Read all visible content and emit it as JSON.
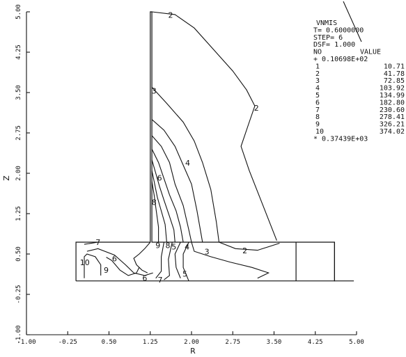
{
  "chart_data": {
    "type": "line",
    "title": "",
    "xlabel": "R",
    "ylabel": "Z",
    "xlim": [
      -1.0,
      5.0
    ],
    "ylim": [
      -1.0,
      5.0
    ],
    "x_ticks": [
      "-1.00",
      "-0.25",
      "0.50",
      "1.25",
      "2.00",
      "2.75",
      "3.50",
      "4.25",
      "5.00"
    ],
    "y_ticks": [
      "-1.00",
      "-0.25",
      "0.50",
      "1.25",
      "2.00",
      "2.75",
      "3.50",
      "4.25",
      "5.00"
    ],
    "legend": {
      "header": "VNMIS",
      "time": "T=  0.6000000",
      "step": "STEP=   6",
      "dsf": "DSF=   1.000",
      "col_no": "NO",
      "col_value": "VALUE",
      "min_label": "+ 0.10698E+02",
      "max_label": "* 0.37439E+03",
      "levels": [
        {
          "no": "1",
          "value": "10.71"
        },
        {
          "no": "2",
          "value": "41.78"
        },
        {
          "no": "3",
          "value": "72.85"
        },
        {
          "no": "4",
          "value": "103.92"
        },
        {
          "no": "5",
          "value": "134.99"
        },
        {
          "no": "6",
          "value": "182.80"
        },
        {
          "no": "7",
          "value": "230.60"
        },
        {
          "no": "8",
          "value": "278.41"
        },
        {
          "no": "9",
          "value": "326.21"
        },
        {
          "no": "10",
          "value": "374.02"
        }
      ]
    },
    "geometry": {
      "outline": [
        [
          -0.1,
          0.0
        ],
        [
          -0.1,
          0.72
        ],
        [
          1.25,
          0.72
        ],
        [
          1.25,
          5.0
        ],
        [
          1.28,
          5.0
        ],
        [
          1.28,
          0.72
        ],
        [
          4.6,
          0.72
        ],
        [
          4.6,
          0.0
        ],
        [
          -0.1,
          0.0
        ]
      ],
      "inner_line": [
        [
          3.9,
          0.0
        ],
        [
          3.9,
          0.72
        ]
      ],
      "step": [
        [
          4.6,
          0.72
        ],
        [
          4.6,
          0.0
        ],
        [
          4.95,
          0.0
        ]
      ]
    },
    "contours": [
      {
        "level": "2",
        "points": [
          [
            1.28,
            5.0
          ],
          [
            1.7,
            4.95
          ],
          [
            2.05,
            4.7
          ],
          [
            2.4,
            4.3
          ],
          [
            2.75,
            3.9
          ],
          [
            3.0,
            3.55
          ],
          [
            3.15,
            3.25
          ],
          [
            3.05,
            2.95
          ],
          [
            2.9,
            2.5
          ],
          [
            3.05,
            2.05
          ],
          [
            3.3,
            1.4
          ],
          [
            3.55,
            0.75
          ]
        ]
      },
      {
        "level": "2",
        "points": [
          [
            2.5,
            0.72
          ],
          [
            2.8,
            0.6
          ],
          [
            3.2,
            0.57
          ],
          [
            3.6,
            0.7
          ]
        ]
      },
      {
        "level": "3",
        "points": [
          [
            1.28,
            3.6
          ],
          [
            1.55,
            3.3
          ],
          [
            1.85,
            2.95
          ],
          [
            2.05,
            2.6
          ],
          [
            2.2,
            2.2
          ],
          [
            2.35,
            1.7
          ],
          [
            2.45,
            1.1
          ],
          [
            2.5,
            0.72
          ]
        ]
      },
      {
        "level": "3",
        "points": [
          [
            2.0,
            0.72
          ],
          [
            2.05,
            0.55
          ],
          [
            2.35,
            0.45
          ],
          [
            2.7,
            0.35
          ],
          [
            3.1,
            0.25
          ],
          [
            3.4,
            0.15
          ],
          [
            3.2,
            0.05
          ]
        ]
      },
      {
        "level": "4",
        "points": [
          [
            1.28,
            3.0
          ],
          [
            1.5,
            2.8
          ],
          [
            1.7,
            2.5
          ],
          [
            1.85,
            2.15
          ],
          [
            2.0,
            1.8
          ],
          [
            2.1,
            1.3
          ],
          [
            2.2,
            0.72
          ]
        ]
      },
      {
        "level": "5",
        "points": [
          [
            1.28,
            2.7
          ],
          [
            1.45,
            2.5
          ],
          [
            1.6,
            2.2
          ],
          [
            1.7,
            1.8
          ],
          [
            1.85,
            1.4
          ],
          [
            1.95,
            0.95
          ],
          [
            2.0,
            0.72
          ]
        ]
      },
      {
        "level": "5",
        "points": [
          [
            1.95,
            0.72
          ],
          [
            1.85,
            0.5
          ],
          [
            1.85,
            0.25
          ],
          [
            1.95,
            0.0
          ]
        ]
      },
      {
        "level": "6",
        "points": [
          [
            1.28,
            2.45
          ],
          [
            1.4,
            2.2
          ],
          [
            1.5,
            1.9
          ],
          [
            1.6,
            1.6
          ],
          [
            1.72,
            1.3
          ],
          [
            1.8,
            1.0
          ],
          [
            1.85,
            0.72
          ]
        ]
      },
      {
        "level": "6",
        "points": [
          [
            1.8,
            0.72
          ],
          [
            1.7,
            0.5
          ],
          [
            1.72,
            0.25
          ],
          [
            1.8,
            0.05
          ]
        ]
      },
      {
        "level": "6",
        "points": [
          [
            0.1,
            0.55
          ],
          [
            0.3,
            0.6
          ],
          [
            0.6,
            0.48
          ],
          [
            0.8,
            0.3
          ],
          [
            0.95,
            0.15
          ],
          [
            1.15,
            0.1
          ],
          [
            1.3,
            0.15
          ]
        ]
      },
      {
        "level": "7",
        "points": [
          [
            1.28,
            2.25
          ],
          [
            1.35,
            2.0
          ],
          [
            1.42,
            1.75
          ],
          [
            1.5,
            1.5
          ],
          [
            1.6,
            1.2
          ],
          [
            1.68,
            0.95
          ],
          [
            1.7,
            0.72
          ]
        ]
      },
      {
        "level": "7",
        "points": [
          [
            1.65,
            0.72
          ],
          [
            1.58,
            0.4
          ],
          [
            1.6,
            0.1
          ],
          [
            1.5,
            0.02
          ]
        ]
      },
      {
        "level": "7",
        "points": [
          [
            0.05,
            0.68
          ],
          [
            0.3,
            0.72
          ],
          [
            0.6,
            0.72
          ]
        ]
      },
      {
        "level": "8",
        "points": [
          [
            1.28,
            2.05
          ],
          [
            1.33,
            1.8
          ],
          [
            1.38,
            1.55
          ],
          [
            1.45,
            1.3
          ],
          [
            1.52,
            1.05
          ],
          [
            1.55,
            0.72
          ]
        ]
      },
      {
        "level": "8",
        "points": [
          [
            1.5,
            0.72
          ],
          [
            1.45,
            0.45
          ],
          [
            1.45,
            0.18
          ],
          [
            1.35,
            0.05
          ]
        ]
      },
      {
        "level": "8",
        "points": [
          [
            0.45,
            0.44
          ],
          [
            0.55,
            0.38
          ],
          [
            0.7,
            0.2
          ],
          [
            0.85,
            0.1
          ],
          [
            1.0,
            0.15
          ],
          [
            1.05,
            0.25
          ]
        ]
      },
      {
        "level": "9",
        "points": [
          [
            1.28,
            1.85
          ],
          [
            1.32,
            1.6
          ],
          [
            1.36,
            1.3
          ],
          [
            1.4,
            1.0
          ],
          [
            1.4,
            0.72
          ]
        ]
      },
      {
        "level": "9",
        "points": [
          [
            1.25,
            0.72
          ],
          [
            1.15,
            0.6
          ],
          [
            1.05,
            0.5
          ],
          [
            0.95,
            0.42
          ],
          [
            1.0,
            0.3
          ],
          [
            1.1,
            0.2
          ],
          [
            1.2,
            0.15
          ]
        ]
      },
      {
        "level": "10",
        "points": [
          [
            0.05,
            0.05
          ],
          [
            0.05,
            0.45
          ],
          [
            0.1,
            0.5
          ],
          [
            0.25,
            0.45
          ],
          [
            0.35,
            0.3
          ],
          [
            0.35,
            0.1
          ]
        ]
      }
    ],
    "contour_labels": [
      {
        "text": "2",
        "x": 1.62,
        "y": 4.93
      },
      {
        "text": "2",
        "x": 3.18,
        "y": 3.2
      },
      {
        "text": "2",
        "x": 2.97,
        "y": 0.55
      },
      {
        "text": "3",
        "x": 1.32,
        "y": 3.52
      },
      {
        "text": "3",
        "x": 2.28,
        "y": 0.53
      },
      {
        "text": "4",
        "x": 1.93,
        "y": 2.18
      },
      {
        "text": "4",
        "x": 1.92,
        "y": 0.62
      },
      {
        "text": "5",
        "x": 1.68,
        "y": 0.62
      },
      {
        "text": "5",
        "x": 1.88,
        "y": 0.12
      },
      {
        "text": "6",
        "x": 1.42,
        "y": 1.9
      },
      {
        "text": "6",
        "x": 0.6,
        "y": 0.4
      },
      {
        "text": "6",
        "x": 1.15,
        "y": 0.04
      },
      {
        "text": "7",
        "x": 0.3,
        "y": 0.71
      },
      {
        "text": "7",
        "x": 1.43,
        "y": 0.01
      },
      {
        "text": "8",
        "x": 1.32,
        "y": 1.45
      },
      {
        "text": "8",
        "x": 1.57,
        "y": 0.65
      },
      {
        "text": "9",
        "x": 1.39,
        "y": 0.65
      },
      {
        "text": "9",
        "x": 0.45,
        "y": 0.19
      },
      {
        "text": "10",
        "x": 0.06,
        "y": 0.33
      }
    ],
    "grid": false,
    "legend_position": "top-right"
  }
}
